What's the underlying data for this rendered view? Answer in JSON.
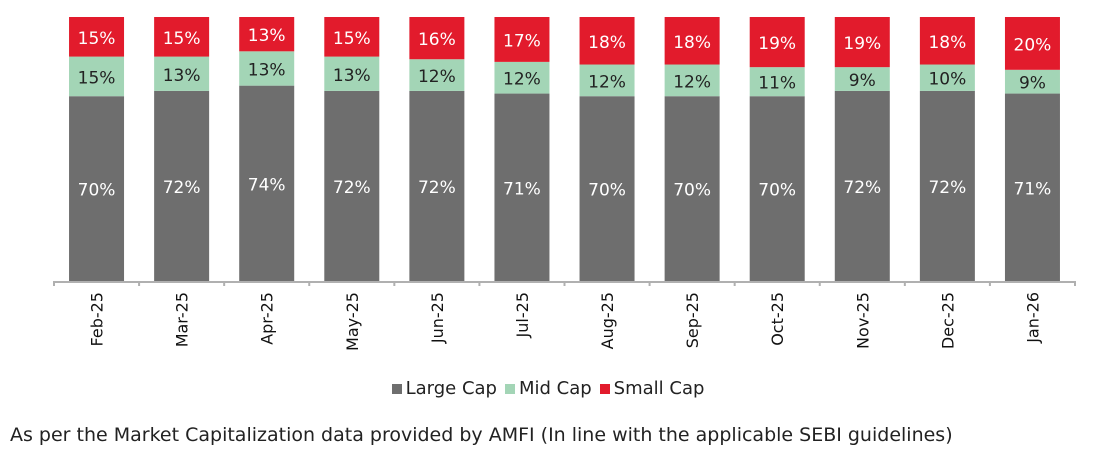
{
  "chart_data": {
    "type": "bar",
    "stacked": true,
    "categories": [
      "Feb-25",
      "Mar-25",
      "Apr-25",
      "May-25",
      "Jun-25",
      "Jul-25",
      "Aug-25",
      "Sep-25",
      "Oct-25",
      "Nov-25",
      "Dec-25",
      "Jan-26"
    ],
    "series": [
      {
        "name": "Large Cap",
        "color": "#6e6e6e",
        "label_color": "#ffffff",
        "values": [
          70,
          72,
          74,
          72,
          72,
          71,
          70,
          70,
          70,
          72,
          72,
          71
        ]
      },
      {
        "name": "Mid Cap",
        "color": "#a3d5b6",
        "label_color": "#222222",
        "values": [
          15,
          13,
          13,
          13,
          12,
          12,
          12,
          12,
          11,
          9,
          10,
          9
        ]
      },
      {
        "name": "Small Cap",
        "color": "#e21b2c",
        "label_color": "#ffffff",
        "values": [
          15,
          15,
          13,
          15,
          16,
          17,
          18,
          18,
          19,
          19,
          18,
          20
        ]
      }
    ],
    "value_suffix": "%",
    "ylim": [
      0,
      100
    ],
    "legend_position": "bottom",
    "grid": false
  },
  "footnote": "As per the Market Capitalization data provided by AMFI (In line with the applicable SEBI guidelines)"
}
